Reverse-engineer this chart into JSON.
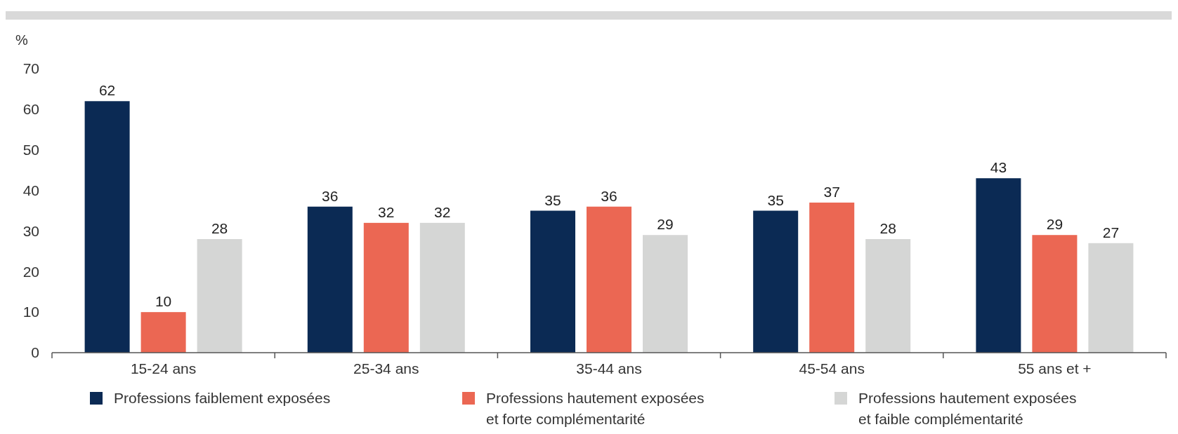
{
  "chart_data": {
    "type": "bar",
    "ylabel": "%",
    "categories": [
      "15-24 ans",
      "25-34 ans",
      "35-44 ans",
      "45-54 ans",
      "55 ans et +"
    ],
    "series": [
      {
        "name": "Professions faiblement exposées",
        "color": "#0b2a54",
        "values": [
          62,
          36,
          35,
          35,
          43
        ]
      },
      {
        "name": "Professions hautement exposées et forte complémentarité",
        "color": "#eb6753",
        "values": [
          10,
          32,
          36,
          37,
          29
        ]
      },
      {
        "name": "Professions hautement exposées et faible complémentarité",
        "color": "#d5d6d5",
        "values": [
          28,
          32,
          29,
          28,
          27
        ]
      }
    ],
    "ylim": [
      0,
      70
    ],
    "yticks": [
      0,
      10,
      20,
      30,
      40,
      50,
      60,
      70
    ],
    "data_labels": true,
    "grid": false,
    "legend": "bottom"
  }
}
